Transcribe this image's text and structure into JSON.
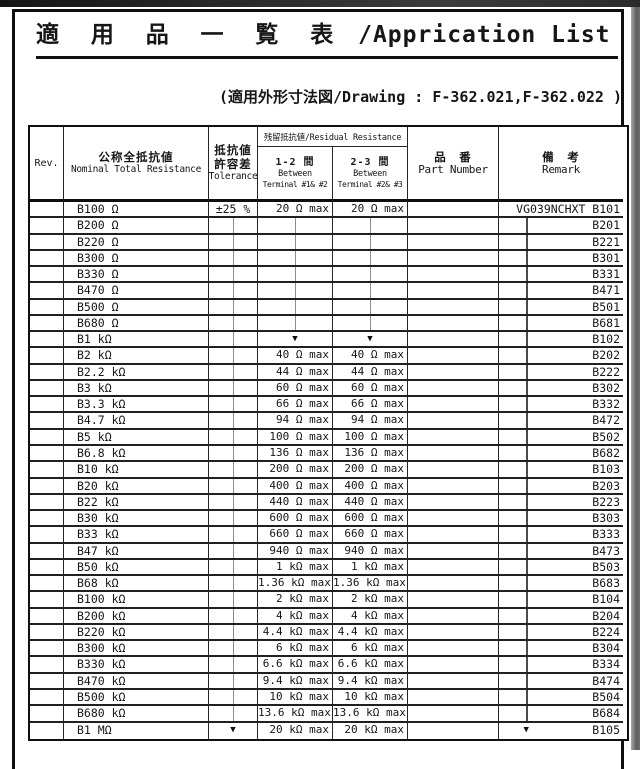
{
  "page": {
    "title_jp": "適 用 品 一 覧 表",
    "title_en": "/Apprication  List",
    "subtitle": "(適用外形寸法図/Drawing : F-362.021,F-362.022 )"
  },
  "marks": {
    "arrow_glyph": "▼",
    "ditto_meaning": "same as above"
  },
  "table": {
    "header": {
      "rev": "Rev.",
      "nominal_jp": "公称全抵抗値",
      "nominal_en": "Nominal Total Resistance",
      "tolerance_jp_1": "抵抗値",
      "tolerance_jp_2": "許容差",
      "tolerance_en": "Tolerance",
      "residual": "残留抵抗値/Residual Resistance",
      "between_12_jp": "1-2 間",
      "between_12_en_1": "Between",
      "between_12_en_2": "Terminal #1& #2",
      "between_23_jp": "2-3 間",
      "between_23_en_1": "Between",
      "between_23_en_2": "Terminal #2& #3",
      "part_jp": "品　番",
      "part_en": "Part Number",
      "remark_jp": "備　考",
      "remark_en": "Remark"
    },
    "rows": [
      {
        "res": "B100 Ω",
        "tol": "±25 %",
        "r12": "20 Ω max",
        "r23": "20 Ω max",
        "remark": "VG039NCHXT B101",
        "remark_mark": "none"
      },
      {
        "res": "B200 Ω",
        "tol": "DITTO",
        "r12": "DITTO",
        "r23": "DITTO",
        "remark": "B201",
        "remark_mark": "ditto"
      },
      {
        "res": "B220 Ω",
        "tol": "DITTO",
        "r12": "DITTO",
        "r23": "DITTO",
        "remark": "B221",
        "remark_mark": "ditto"
      },
      {
        "res": "B300 Ω",
        "tol": "DITTO",
        "r12": "DITTO",
        "r23": "DITTO",
        "remark": "B301",
        "remark_mark": "ditto"
      },
      {
        "res": "B330 Ω",
        "tol": "DITTO",
        "r12": "DITTO",
        "r23": "DITTO",
        "remark": "B331",
        "remark_mark": "ditto"
      },
      {
        "res": "B470 Ω",
        "tol": "DITTO",
        "r12": "DITTO",
        "r23": "DITTO",
        "remark": "B471",
        "remark_mark": "ditto"
      },
      {
        "res": "B500 Ω",
        "tol": "DITTO",
        "r12": "DITTO",
        "r23": "DITTO",
        "remark": "B501",
        "remark_mark": "ditto"
      },
      {
        "res": "B680 Ω",
        "tol": "DITTO",
        "r12": "DITTO",
        "r23": "DITTO",
        "remark": "B681",
        "remark_mark": "ditto"
      },
      {
        "res": "B1 kΩ",
        "tol": "DITTO",
        "r12": "ARROW",
        "r23": "ARROW",
        "remark": "B102",
        "remark_mark": "ditto"
      },
      {
        "res": "B2 kΩ",
        "tol": "DITTO",
        "r12": "40 Ω max",
        "r23": "40 Ω max",
        "remark": "B202",
        "remark_mark": "ditto"
      },
      {
        "res": "B2.2 kΩ",
        "tol": "DITTO",
        "r12": "44 Ω max",
        "r23": "44 Ω max",
        "remark": "B222",
        "remark_mark": "ditto"
      },
      {
        "res": "B3 kΩ",
        "tol": "DITTO",
        "r12": "60 Ω max",
        "r23": "60 Ω max",
        "remark": "B302",
        "remark_mark": "ditto"
      },
      {
        "res": "B3.3 kΩ",
        "tol": "DITTO",
        "r12": "66 Ω max",
        "r23": "66 Ω max",
        "remark": "B332",
        "remark_mark": "ditto"
      },
      {
        "res": "B4.7 kΩ",
        "tol": "DITTO",
        "r12": "94 Ω max",
        "r23": "94 Ω max",
        "remark": "B472",
        "remark_mark": "ditto"
      },
      {
        "res": "B5 kΩ",
        "tol": "DITTO",
        "r12": "100 Ω max",
        "r23": "100 Ω max",
        "remark": "B502",
        "remark_mark": "ditto"
      },
      {
        "res": "B6.8 kΩ",
        "tol": "DITTO",
        "r12": "136 Ω max",
        "r23": "136 Ω max",
        "remark": "B682",
        "remark_mark": "ditto"
      },
      {
        "res": "B10 kΩ",
        "tol": "DITTO",
        "r12": "200 Ω max",
        "r23": "200 Ω max",
        "remark": "B103",
        "remark_mark": "ditto"
      },
      {
        "res": "B20 kΩ",
        "tol": "DITTO",
        "r12": "400 Ω max",
        "r23": "400 Ω max",
        "remark": "B203",
        "remark_mark": "ditto"
      },
      {
        "res": "B22 kΩ",
        "tol": "DITTO",
        "r12": "440 Ω max",
        "r23": "440 Ω max",
        "remark": "B223",
        "remark_mark": "ditto"
      },
      {
        "res": "B30 kΩ",
        "tol": "DITTO",
        "r12": "600 Ω max",
        "r23": "600 Ω max",
        "remark": "B303",
        "remark_mark": "ditto"
      },
      {
        "res": "B33 kΩ",
        "tol": "DITTO",
        "r12": "660 Ω max",
        "r23": "660 Ω max",
        "remark": "B333",
        "remark_mark": "ditto"
      },
      {
        "res": "B47 kΩ",
        "tol": "DITTO",
        "r12": "940 Ω max",
        "r23": "940 Ω max",
        "remark": "B473",
        "remark_mark": "ditto"
      },
      {
        "res": "B50 kΩ",
        "tol": "DITTO",
        "r12": "1 kΩ max",
        "r23": "1 kΩ max",
        "remark": "B503",
        "remark_mark": "ditto"
      },
      {
        "res": "B68 kΩ",
        "tol": "DITTO",
        "r12": "1.36 kΩ max",
        "r23": "1.36 kΩ max",
        "remark": "B683",
        "remark_mark": "ditto"
      },
      {
        "res": "B100 kΩ",
        "tol": "DITTO",
        "r12": "2 kΩ max",
        "r23": "2 kΩ max",
        "remark": "B104",
        "remark_mark": "ditto"
      },
      {
        "res": "B200 kΩ",
        "tol": "DITTO",
        "r12": "4 kΩ max",
        "r23": "4 kΩ max",
        "remark": "B204",
        "remark_mark": "ditto"
      },
      {
        "res": "B220 kΩ",
        "tol": "DITTO",
        "r12": "4.4 kΩ max",
        "r23": "4.4 kΩ max",
        "remark": "B224",
        "remark_mark": "ditto"
      },
      {
        "res": "B300 kΩ",
        "tol": "DITTO",
        "r12": "6 kΩ max",
        "r23": "6 kΩ max",
        "remark": "B304",
        "remark_mark": "ditto"
      },
      {
        "res": "B330 kΩ",
        "tol": "DITTO",
        "r12": "6.6 kΩ max",
        "r23": "6.6 kΩ max",
        "remark": "B334",
        "remark_mark": "ditto"
      },
      {
        "res": "B470 kΩ",
        "tol": "DITTO",
        "r12": "9.4 kΩ max",
        "r23": "9.4 kΩ max",
        "remark": "B474",
        "remark_mark": "ditto"
      },
      {
        "res": "B500 kΩ",
        "tol": "DITTO",
        "r12": "10 kΩ max",
        "r23": "10 kΩ max",
        "remark": "B504",
        "remark_mark": "ditto"
      },
      {
        "res": "B680 kΩ",
        "tol": "DITTO",
        "r12": "13.6 kΩ max",
        "r23": "13.6 kΩ max",
        "remark": "B684",
        "remark_mark": "ditto"
      },
      {
        "res": "B1 MΩ",
        "tol": "ARROW",
        "r12": "20 kΩ max",
        "r23": "20 kΩ max",
        "remark": "B105",
        "remark_mark": "arrow"
      }
    ]
  }
}
